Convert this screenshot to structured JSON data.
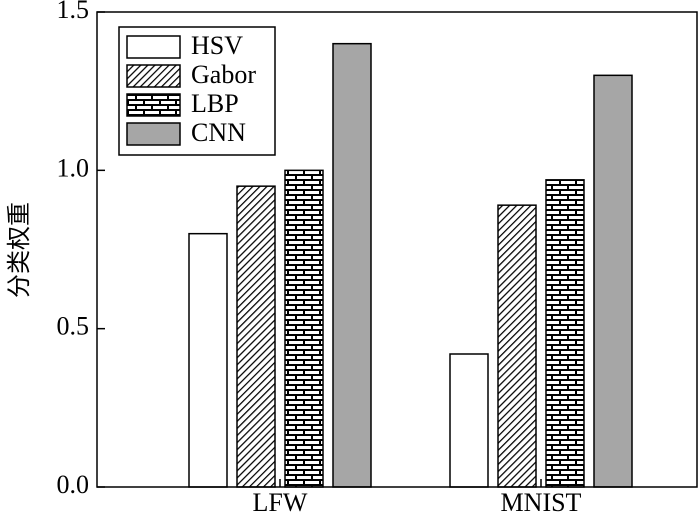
{
  "chart_data": {
    "type": "bar",
    "y_label": "分类权重",
    "categories": [
      "LFW",
      "MNIST"
    ],
    "series": [
      {
        "name": "HSV",
        "color": "#ffffff",
        "hatch": "none",
        "values": [
          0.8,
          0.42
        ]
      },
      {
        "name": "Gabor",
        "color": "#ffffff",
        "hatch": "diagonal",
        "values": [
          0.95,
          0.89
        ]
      },
      {
        "name": "LBP",
        "color": "#ffffff",
        "hatch": "brick",
        "values": [
          1.0,
          0.97
        ]
      },
      {
        "name": "CNN",
        "color": "#a6a6a6",
        "hatch": "none",
        "values": [
          1.4,
          1.3
        ]
      }
    ],
    "ylim": [
      0,
      1.5
    ],
    "yticks": [
      {
        "value": 0,
        "label": "0.0"
      },
      0.5,
      {
        "value": 1,
        "label": "1.0"
      },
      1.5
    ],
    "legend": "upper left"
  }
}
